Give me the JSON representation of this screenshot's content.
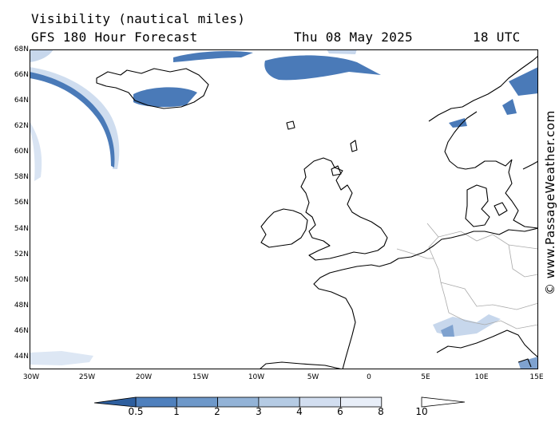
{
  "header": {
    "title": "Visibility (nautical miles)",
    "subtitle": "GFS 180 Hour Forecast",
    "date": "Thu 08 May 2025",
    "time": "18 UTC"
  },
  "credit": "© www.PassageWeather.com",
  "axes": {
    "lat_labels": [
      "68N",
      "66N",
      "64N",
      "62N",
      "60N",
      "58N",
      "56N",
      "54N",
      "52N",
      "50N",
      "48N",
      "46N",
      "44N"
    ],
    "lon_labels": [
      "30W",
      "25W",
      "20W",
      "15W",
      "10W",
      "5W",
      "0",
      "5E",
      "10E",
      "15E"
    ]
  },
  "colorbar": {
    "labels": [
      "0.5",
      "1",
      "2",
      "3",
      "4",
      "6",
      "8",
      "10"
    ],
    "colors": [
      "#3e6fb0",
      "#4f80bd",
      "#6e98c9",
      "#93b3d7",
      "#b5cbe4",
      "#d2def0",
      "#e8eef8",
      "#ffffff"
    ]
  },
  "colors": {
    "land_outline": "#000000",
    "borders": "#aaaaaa",
    "low_visibility": "#4a7ab8",
    "reduced_visibility": "#c7d7ec"
  }
}
